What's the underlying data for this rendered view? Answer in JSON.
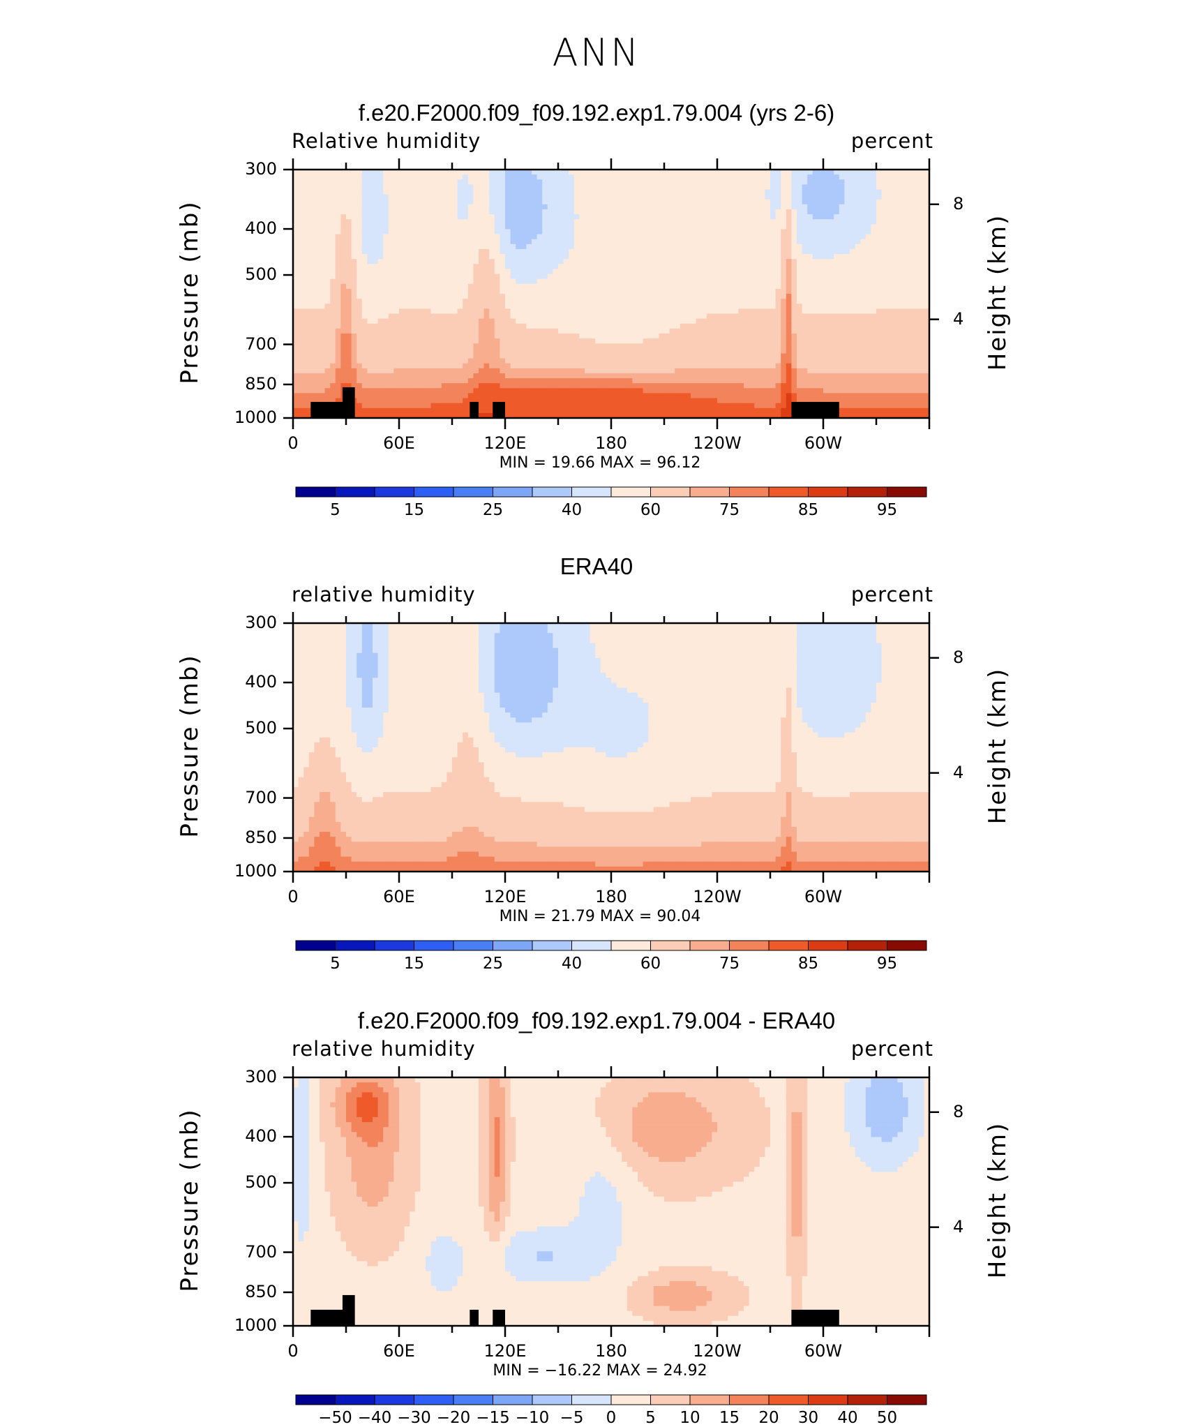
{
  "main_title": "ANN",
  "axis_labels": {
    "ylabel": "Pressure (mb)",
    "zlabel": "Height (km)",
    "yticks": [
      "300",
      "400",
      "500",
      "700",
      "850",
      "1000"
    ],
    "zticks": [
      "8",
      "4"
    ],
    "xticks": [
      "0",
      "60E",
      "120E",
      "180",
      "120W",
      "60W"
    ]
  },
  "colorbars": {
    "abs": [
      "5",
      "15",
      "25",
      "40",
      "60",
      "75",
      "85",
      "95"
    ],
    "diff": [
      "−50",
      "−40",
      "−30",
      "−20",
      "−15",
      "−10",
      "−5",
      "0",
      "5",
      "10",
      "15",
      "20",
      "30",
      "40",
      "50"
    ]
  },
  "colors": {
    "abs_palette": [
      "#00008f",
      "#0717bb",
      "#1b39df",
      "#2f5ef5",
      "#4a7ef5",
      "#7ea6f7",
      "#adc8fa",
      "#d6e5fb",
      "#fdeadb",
      "#fbcdb6",
      "#f7ad8e",
      "#f3835b",
      "#ef5a2b",
      "#dc3c14",
      "#b42109",
      "#870a03"
    ],
    "land": "#000000"
  },
  "chart_data": [
    {
      "type": "heatmap",
      "title": "f.e20.F2000.f09_f09.192.exp1.79.004 (yrs 2-6)",
      "left_string": "Relative humidity",
      "right_string": "percent",
      "ylabel": "Pressure (mb)",
      "ylabel_right": "Height (km)",
      "y_ticks": [
        300,
        400,
        500,
        700,
        850,
        1000
      ],
      "y_right_ticks": [
        8,
        4
      ],
      "x_ticks": [
        "0",
        "60E",
        "120E",
        "180",
        "120W",
        "60W"
      ],
      "xlim": [
        0,
        360
      ],
      "ylim": [
        1000,
        300
      ],
      "min": 19.66,
      "max": 96.12,
      "min_text": "MIN =   19.66   MAX =   96.12",
      "contour_levels": [
        5,
        10,
        15,
        20,
        25,
        30,
        40,
        50,
        60,
        70,
        75,
        80,
        85,
        90,
        95
      ],
      "colorbar_labels": [
        "5",
        "15",
        "25",
        "40",
        "60",
        "75",
        "85",
        "95"
      ]
    },
    {
      "type": "heatmap",
      "title": "ERA40",
      "left_string": "relative humidity",
      "right_string": "percent",
      "ylabel": "Pressure (mb)",
      "ylabel_right": "Height (km)",
      "y_ticks": [
        300,
        400,
        500,
        700,
        850,
        1000
      ],
      "y_right_ticks": [
        8,
        4
      ],
      "x_ticks": [
        "0",
        "60E",
        "120E",
        "180",
        "120W",
        "60W"
      ],
      "xlim": [
        0,
        360
      ],
      "ylim": [
        1000,
        300
      ],
      "min": 21.79,
      "max": 90.04,
      "min_text": "MIN =   21.79   MAX =   90.04",
      "contour_levels": [
        5,
        10,
        15,
        20,
        25,
        30,
        40,
        50,
        60,
        70,
        75,
        80,
        85,
        90,
        95
      ],
      "colorbar_labels": [
        "5",
        "15",
        "25",
        "40",
        "60",
        "75",
        "85",
        "95"
      ]
    },
    {
      "type": "heatmap",
      "title": "f.e20.F2000.f09_f09.192.exp1.79.004 - ERA40",
      "left_string": "relative humidity",
      "right_string": "percent",
      "ylabel": "Pressure (mb)",
      "ylabel_right": "Height (km)",
      "y_ticks": [
        300,
        400,
        500,
        700,
        850,
        1000
      ],
      "y_right_ticks": [
        8,
        4
      ],
      "x_ticks": [
        "0",
        "60E",
        "120E",
        "180",
        "120W",
        "60W"
      ],
      "xlim": [
        0,
        360
      ],
      "ylim": [
        1000,
        300
      ],
      "min": -16.22,
      "max": 24.92,
      "min_text": "MIN = −16.22   MAX =   24.92",
      "contour_levels": [
        -50,
        -40,
        -30,
        -20,
        -15,
        -10,
        -5,
        0,
        5,
        10,
        15,
        20,
        30,
        40,
        50
      ],
      "colorbar_labels": [
        "−50",
        "−40",
        "−30",
        "−20",
        "−15",
        "−10",
        "−5",
        "0",
        "5",
        "10",
        "15",
        "20",
        "30",
        "40",
        "50"
      ]
    }
  ]
}
